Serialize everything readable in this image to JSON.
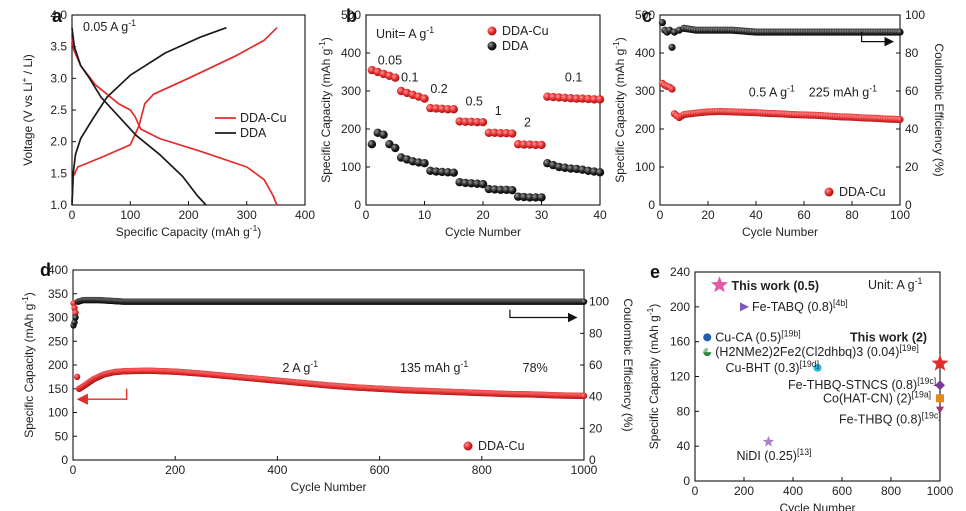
{
  "chart_data": [
    {
      "panel": "a",
      "type": "line",
      "xlabel": "Specific Capacity (mAh g-1)",
      "ylabel": "Voltage (V vs Li+ / Li)",
      "xlim": [
        0,
        400
      ],
      "ylim": [
        1.0,
        4.0
      ],
      "xticks": [
        "0",
        "100",
        "200",
        "300",
        "400"
      ],
      "yticks": [
        "1.0",
        "1.5",
        "2.0",
        "2.5",
        "3.0",
        "3.5",
        "4.0"
      ],
      "annotation": "0.05 A g-1",
      "legend": [
        "DDA-Cu",
        "DDA"
      ],
      "legend_position": "right",
      "series": [
        {
          "name": "DDA-Cu",
          "color": "#e32b2b",
          "curve": "discharge",
          "x": [
            0,
            3,
            15,
            40,
            80,
            100,
            108,
            118,
            150,
            220,
            300,
            330,
            345,
            352
          ],
          "y": [
            3.65,
            3.45,
            3.2,
            2.9,
            2.6,
            2.5,
            2.4,
            2.2,
            2.05,
            1.85,
            1.6,
            1.4,
            1.15,
            1.0
          ]
        },
        {
          "name": "DDA-Cu",
          "color": "#e32b2b",
          "curve": "charge",
          "x": [
            0,
            2,
            10,
            50,
            100,
            115,
            125,
            140,
            200,
            280,
            330,
            352
          ],
          "y": [
            1.05,
            1.45,
            1.6,
            1.75,
            1.95,
            2.25,
            2.6,
            2.75,
            3.0,
            3.35,
            3.6,
            3.8
          ]
        },
        {
          "name": "DDA",
          "color": "#1a1a1a",
          "curve": "discharge",
          "x": [
            0,
            4,
            15,
            30,
            50,
            80,
            110,
            150,
            190,
            215,
            230
          ],
          "y": [
            3.8,
            3.5,
            3.2,
            3.0,
            2.7,
            2.4,
            2.1,
            1.8,
            1.45,
            1.15,
            1.0
          ]
        },
        {
          "name": "DDA",
          "color": "#1a1a1a",
          "curve": "charge",
          "x": [
            0,
            2,
            6,
            15,
            35,
            60,
            100,
            160,
            220,
            265
          ],
          "y": [
            1.0,
            1.5,
            1.8,
            2.05,
            2.35,
            2.7,
            3.05,
            3.4,
            3.65,
            3.8
          ]
        }
      ]
    },
    {
      "panel": "b",
      "type": "scatter",
      "xlabel": "Cycle Number",
      "ylabel": "Specific Capacity (mAh g-1)",
      "xlim": [
        0,
        40
      ],
      "ylim": [
        0,
        500
      ],
      "xticks": [
        "0",
        "10",
        "20",
        "30",
        "40"
      ],
      "yticks": [
        "0",
        "100",
        "200",
        "300",
        "400",
        "500"
      ],
      "unit_label": "Unit= A g-1",
      "rate_labels": [
        "0.05",
        "0.1",
        "0.2",
        "0.5",
        "1",
        "2",
        "0.1"
      ],
      "legend": [
        "DDA-Cu",
        "DDA"
      ],
      "legend_position": "top-right",
      "series": [
        {
          "name": "DDA-Cu",
          "color": "#e32b2b",
          "x": [
            1,
            2,
            3,
            4,
            5,
            6,
            7,
            8,
            9,
            10,
            11,
            12,
            13,
            14,
            15,
            16,
            17,
            18,
            19,
            20,
            21,
            22,
            23,
            24,
            25,
            26,
            27,
            28,
            29,
            30,
            31,
            32,
            33,
            34,
            35,
            36,
            37,
            38,
            39,
            40
          ],
          "y": [
            355,
            350,
            345,
            340,
            335,
            300,
            295,
            290,
            285,
            280,
            255,
            254,
            253,
            252,
            252,
            220,
            219,
            219,
            218,
            218,
            190,
            190,
            189,
            189,
            188,
            160,
            159,
            159,
            158,
            158,
            285,
            284,
            283,
            282,
            281,
            280,
            280,
            279,
            278,
            278
          ]
        },
        {
          "name": "DDA",
          "color": "#111111",
          "x": [
            1,
            2,
            3,
            4,
            5,
            6,
            7,
            8,
            9,
            10,
            11,
            12,
            13,
            14,
            15,
            16,
            17,
            18,
            19,
            20,
            21,
            22,
            23,
            24,
            25,
            26,
            27,
            28,
            29,
            30,
            31,
            32,
            33,
            34,
            35,
            36,
            37,
            38,
            39,
            40
          ],
          "y": [
            160,
            190,
            185,
            160,
            150,
            125,
            120,
            115,
            112,
            110,
            90,
            88,
            87,
            86,
            85,
            60,
            58,
            57,
            56,
            55,
            42,
            41,
            40,
            40,
            39,
            22,
            21,
            20,
            20,
            20,
            110,
            105,
            100,
            98,
            96,
            95,
            93,
            90,
            88,
            86
          ]
        }
      ]
    },
    {
      "panel": "c",
      "type": "scatter",
      "xlabel": "Cycle Number",
      "ylabel": "Specific Capacity (mAh g-1)",
      "ylabel_right": "Coulombic Efficiency (%)",
      "xlim": [
        0,
        100
      ],
      "ylim": [
        0,
        500
      ],
      "ylim_right": [
        0,
        100
      ],
      "xticks": [
        "0",
        "20",
        "40",
        "60",
        "80",
        "100"
      ],
      "yticks": [
        "0",
        "100",
        "200",
        "300",
        "400",
        "500"
      ],
      "yticks_right": [
        "0",
        "20",
        "40",
        "60",
        "80",
        "100"
      ],
      "annotations": [
        "0.5 A g-1",
        "225 mAh g-1"
      ],
      "legend": [
        "DDA-Cu"
      ],
      "legend_position": "bottom-right",
      "series": [
        {
          "name": "DDA-Cu",
          "color": "#e32b2b",
          "axis": "left",
          "x": [
            1,
            2,
            3,
            4,
            5,
            6,
            8,
            10,
            15,
            20,
            25,
            30,
            35,
            40,
            45,
            50,
            55,
            60,
            65,
            70,
            75,
            80,
            85,
            90,
            95,
            100
          ],
          "y": [
            320,
            315,
            312,
            310,
            305,
            240,
            230,
            238,
            242,
            245,
            246,
            245,
            244,
            243,
            241,
            240,
            238,
            237,
            236,
            234,
            232,
            231,
            229,
            228,
            226,
            225
          ]
        },
        {
          "name": "Coulombic Efficiency",
          "color": "#111111",
          "axis": "right",
          "x": [
            1,
            2,
            3,
            4,
            5,
            6,
            8,
            10,
            15,
            20,
            30,
            40,
            50,
            60,
            70,
            80,
            90,
            100
          ],
          "y": [
            96,
            92,
            91,
            92,
            83,
            91,
            92,
            93,
            92,
            92,
            92,
            91,
            91,
            91,
            91,
            91,
            91,
            91
          ]
        }
      ]
    },
    {
      "panel": "d",
      "type": "scatter",
      "xlabel": "Cycle Number",
      "ylabel": "Specific Capacity (mAh g-1)",
      "ylabel_right": "Coulombic Efficiency (%)",
      "xlim": [
        0,
        1000
      ],
      "ylim": [
        0,
        400
      ],
      "ylim_right": [
        0,
        120
      ],
      "xticks": [
        "0",
        "200",
        "400",
        "600",
        "800",
        "1000"
      ],
      "yticks": [
        "0",
        "50",
        "100",
        "150",
        "200",
        "250",
        "300",
        "350",
        "400"
      ],
      "yticks_right": [
        "0",
        "20",
        "40",
        "60",
        "80",
        "100"
      ],
      "annotations": [
        "2 A g-1",
        "135 mAh g-1",
        "78%"
      ],
      "legend": [
        "DDA-Cu"
      ],
      "legend_position": "bottom-right",
      "series": [
        {
          "name": "DDA-Cu",
          "color": "#e32b2b",
          "axis": "left",
          "x": [
            1,
            3,
            5,
            8,
            12,
            20,
            40,
            60,
            80,
            100,
            150,
            200,
            250,
            300,
            350,
            400,
            450,
            500,
            550,
            600,
            650,
            700,
            750,
            800,
            850,
            900,
            950,
            1000
          ],
          "y": [
            330,
            320,
            310,
            175,
            150,
            155,
            170,
            180,
            185,
            187,
            188,
            186,
            182,
            177,
            172,
            167,
            162,
            157,
            153,
            150,
            147,
            145,
            143,
            141,
            139,
            138,
            136,
            135
          ]
        },
        {
          "name": "Coulombic Efficiency",
          "color": "#111111",
          "axis": "right",
          "x": [
            1,
            3,
            5,
            10,
            20,
            50,
            100,
            200,
            300,
            400,
            500,
            600,
            700,
            800,
            900,
            1000
          ],
          "y": [
            85,
            87,
            90,
            100,
            101,
            101,
            100,
            100,
            100,
            100,
            100,
            100,
            100,
            100,
            100,
            100
          ]
        }
      ]
    },
    {
      "panel": "e",
      "type": "scatter",
      "xlabel": "Cycle Number",
      "ylabel": "Specific Capacity (mAh g-1)",
      "xlim": [
        0,
        1000
      ],
      "ylim": [
        0,
        240
      ],
      "xticks": [
        "0",
        "200",
        "400",
        "600",
        "800",
        "1000"
      ],
      "yticks": [
        "0",
        "40",
        "80",
        "120",
        "160",
        "200",
        "240"
      ],
      "unit_label": "Unit: A g-1",
      "points": [
        {
          "label": "This work (0.5)",
          "x": 100,
          "y": 225,
          "color": "#e05aa8",
          "marker": "star"
        },
        {
          "label": "Fe-TABQ (0.8)",
          "ref": "[4b]",
          "x": 200,
          "y": 200,
          "color": "#7c58b8",
          "marker": "triangle-right"
        },
        {
          "label": "Cu-CA (0.5)",
          "ref": "[19b]",
          "x": 50,
          "y": 165,
          "color": "#1f5fae",
          "marker": "circle"
        },
        {
          "label": "(H2NMe2)2Fe2(Cl2dhbq)3 (0.04)",
          "ref": "[19e]",
          "x": 50,
          "y": 148,
          "color": "#2d8a3e",
          "marker": "half-circle"
        },
        {
          "label": "This work (2)",
          "x": 1000,
          "y": 135,
          "color": "#e32b2b",
          "marker": "star"
        },
        {
          "label": "Cu-BHT (0.3)",
          "ref": "[19d]",
          "x": 500,
          "y": 130,
          "color": "#29b6e3",
          "marker": "circle"
        },
        {
          "label": "Fe-THBQ-STNCS (0.8)",
          "ref": "[19c]",
          "x": 1000,
          "y": 110,
          "color": "#7a3a9c",
          "marker": "diamond"
        },
        {
          "label": "Co(HAT-CN) (2)",
          "ref": "[19a]",
          "x": 1000,
          "y": 95,
          "color": "#e08a1e",
          "marker": "square"
        },
        {
          "label": "Fe-THBQ (0.8)",
          "ref": "[19c]",
          "x": 1000,
          "y": 82,
          "color": "#a0307a",
          "marker": "triangle-down"
        },
        {
          "label": "NiDI (0.25)",
          "ref": "[13]",
          "x": 300,
          "y": 45,
          "color": "#a982c8",
          "marker": "star"
        }
      ]
    }
  ]
}
